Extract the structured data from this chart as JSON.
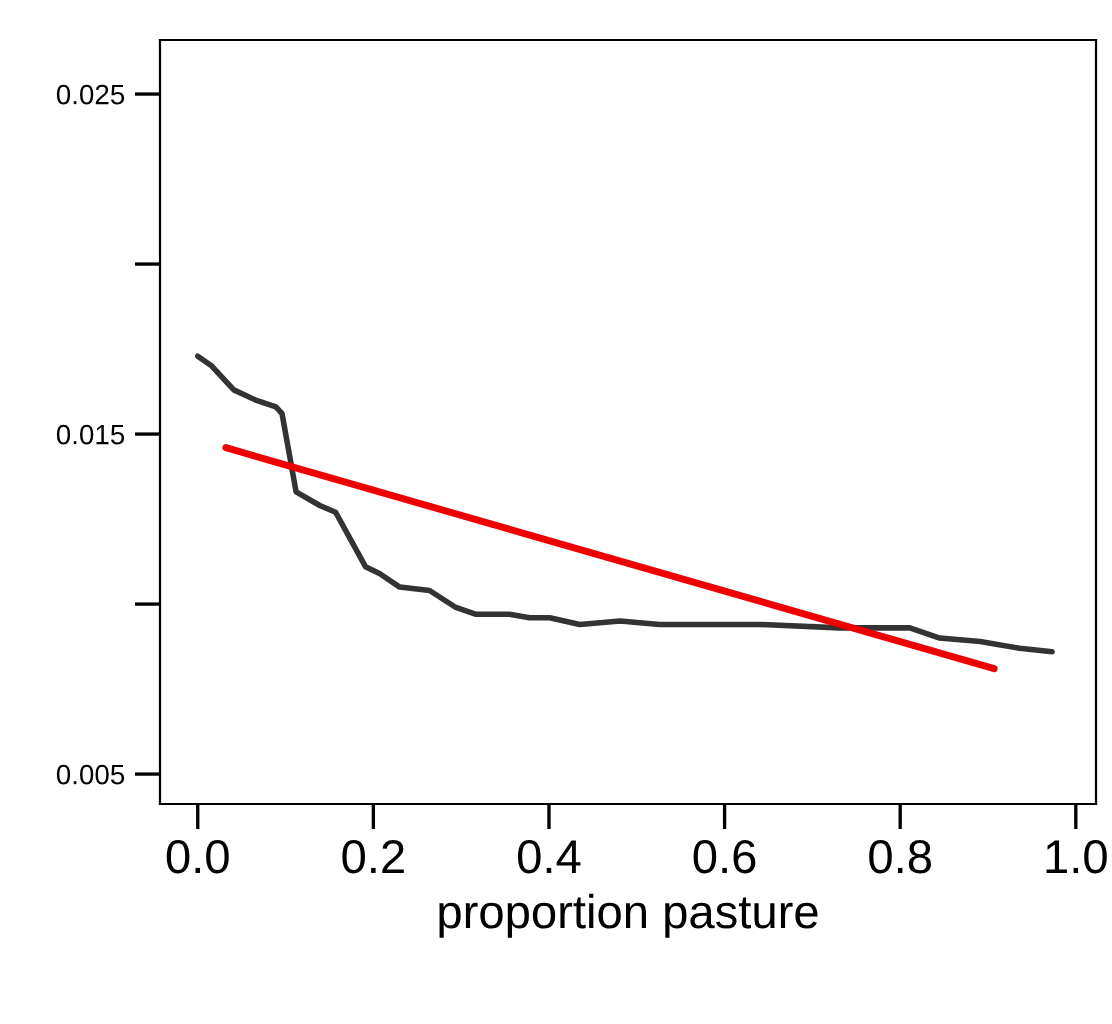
{
  "chart_data": {
    "type": "line",
    "xlabel": "proportion pasture",
    "xlim": [
      -0.043,
      1.023
    ],
    "ylim": [
      0.00412,
      0.02659
    ],
    "xticks": [
      {
        "value": 0.0,
        "label": "0.0"
      },
      0.2,
      0.4,
      0.6,
      0.8,
      {
        "value": 1.0,
        "label": "1.0"
      }
    ],
    "yticks": [
      0.005,
      {
        "value": 0.01,
        "label": null
      },
      0.015,
      {
        "value": 0.02,
        "label": null
      },
      0.025
    ],
    "grid": false,
    "legend": false,
    "series": [
      {
        "color": "#333333",
        "x": [
          0,
          0.016,
          0.041,
          0.066,
          0.089,
          0.096,
          0.112,
          0.139,
          0.157,
          0.191,
          0.207,
          0.23,
          0.264,
          0.294,
          0.317,
          0.355,
          0.378,
          0.401,
          0.435,
          0.481,
          0.526,
          0.64,
          0.731,
          0.811,
          0.845,
          0.891,
          0.936,
          0.973
        ],
        "values": [
          0.01729,
          0.017,
          0.0163,
          0.016,
          0.0158,
          0.0156,
          0.0133,
          0.0129,
          0.0127,
          0.0111,
          0.0109,
          0.0105,
          0.0104,
          0.0099,
          0.0097,
          0.0097,
          0.0096,
          0.0096,
          0.0094,
          0.0095,
          0.0094,
          0.0094,
          0.0093,
          0.0093,
          0.009,
          0.0089,
          0.0087,
          0.0086
        ]
      },
      {
        "color": "#ee0000",
        "x": [
          0.032,
          0.907
        ],
        "values": [
          0.0146,
          0.0081
        ]
      }
    ]
  }
}
